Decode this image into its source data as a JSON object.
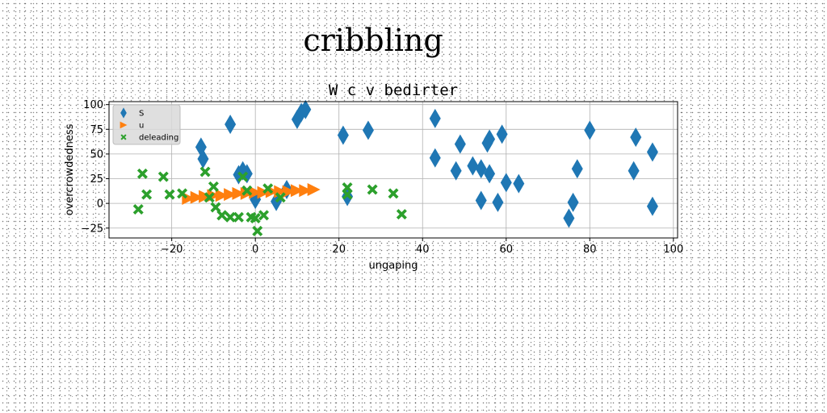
{
  "figure": {
    "suptitle": "cribbling"
  },
  "chart_data": {
    "type": "scatter",
    "title": "W c v bedirter",
    "xlabel": "ungaping",
    "ylabel": "overcrowdedness",
    "xlim": [
      -35,
      101
    ],
    "ylim": [
      -35,
      103
    ],
    "xticks": [
      -20,
      0,
      20,
      40,
      60,
      80,
      100
    ],
    "yticks": [
      -25,
      0,
      25,
      50,
      75,
      100
    ],
    "xtick_labels": [
      "−20",
      "0",
      "20",
      "40",
      "60",
      "80",
      "100"
    ],
    "ytick_labels": [
      "−25",
      "0",
      "25",
      "50",
      "75",
      "100"
    ],
    "grid": true,
    "legend_position": "upper-left",
    "series": [
      {
        "name": "S",
        "marker": "diamond",
        "color": "#1f77b4",
        "points": [
          [
            -13,
            57
          ],
          [
            -12.5,
            45
          ],
          [
            -6,
            80
          ],
          [
            -4,
            29
          ],
          [
            -3,
            33
          ],
          [
            -2,
            30
          ],
          [
            0,
            4
          ],
          [
            5,
            2
          ],
          [
            7.5,
            14
          ],
          [
            10,
            85
          ],
          [
            11,
            92
          ],
          [
            12,
            95
          ],
          [
            21,
            69
          ],
          [
            22,
            7
          ],
          [
            27,
            74
          ],
          [
            43,
            86
          ],
          [
            43,
            46
          ],
          [
            48,
            33
          ],
          [
            49,
            60
          ],
          [
            52,
            38
          ],
          [
            54,
            35
          ],
          [
            54,
            3
          ],
          [
            55.5,
            61
          ],
          [
            56,
            65
          ],
          [
            56,
            30
          ],
          [
            58,
            1
          ],
          [
            59,
            70
          ],
          [
            60,
            21
          ],
          [
            63,
            20
          ],
          [
            75,
            -15
          ],
          [
            76,
            1
          ],
          [
            77,
            35
          ],
          [
            80,
            74
          ],
          [
            90.5,
            33
          ],
          [
            91,
            67
          ],
          [
            95,
            52
          ],
          [
            95,
            -3
          ]
        ]
      },
      {
        "name": "u",
        "marker": "triangle-right",
        "color": "#ff7f0e",
        "points": [
          [
            -16,
            5
          ],
          [
            -14,
            6
          ],
          [
            -12,
            7
          ],
          [
            -10,
            8
          ],
          [
            -8,
            8
          ],
          [
            -6,
            9
          ],
          [
            -4,
            10
          ],
          [
            -2,
            10
          ],
          [
            0,
            11
          ],
          [
            2,
            11
          ],
          [
            4,
            12
          ],
          [
            6,
            12
          ],
          [
            8,
            12
          ],
          [
            10,
            13
          ],
          [
            12,
            13
          ],
          [
            14,
            14
          ]
        ]
      },
      {
        "name": "deleading",
        "marker": "x-filled",
        "color": "#2ca02c",
        "points": [
          [
            -28,
            -6
          ],
          [
            -27,
            30
          ],
          [
            -26,
            9
          ],
          [
            -22,
            27
          ],
          [
            -20.5,
            9
          ],
          [
            -17.5,
            10
          ],
          [
            -12,
            32
          ],
          [
            -11,
            6
          ],
          [
            -10,
            17
          ],
          [
            -9.5,
            -4
          ],
          [
            -8,
            -12
          ],
          [
            -6,
            -14
          ],
          [
            -4,
            -14
          ],
          [
            -3,
            27
          ],
          [
            -2,
            13
          ],
          [
            -1,
            -14
          ],
          [
            0,
            -15
          ],
          [
            0.5,
            -28
          ],
          [
            2,
            -12
          ],
          [
            3,
            15
          ],
          [
            6,
            6
          ],
          [
            22,
            9
          ],
          [
            22,
            16
          ],
          [
            28,
            14
          ],
          [
            33,
            10
          ],
          [
            35,
            -11
          ]
        ]
      }
    ]
  }
}
